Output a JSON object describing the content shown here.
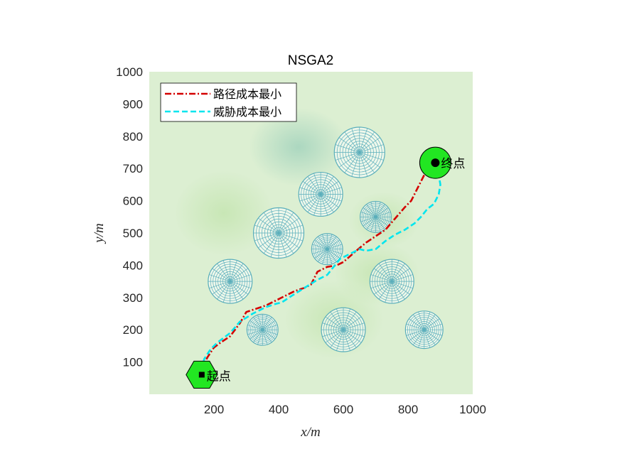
{
  "chart_data": {
    "type": "line",
    "title": "NSGA2",
    "xlabel": "x/m",
    "ylabel": "y/m",
    "xlim": [
      0,
      1000
    ],
    "ylim": [
      0,
      1000
    ],
    "xticks": [
      200,
      400,
      600,
      800,
      1000
    ],
    "yticks": [
      100,
      200,
      300,
      400,
      500,
      600,
      700,
      800,
      900,
      1000
    ],
    "grid": false,
    "legend_position": "top-left",
    "background": "terrain heat map (light green)",
    "series": [
      {
        "name": "路径成本最小",
        "color": "#d40000",
        "style": "dash-dot",
        "x": [
          160,
          180,
          200,
          220,
          250,
          280,
          300,
          330,
          360,
          390,
          420,
          450,
          480,
          500,
          520,
          550,
          580,
          600,
          640,
          670,
          700,
          730,
          760,
          790,
          810,
          830,
          850,
          860,
          870,
          880
        ],
        "y": [
          75,
          115,
          145,
          160,
          180,
          220,
          255,
          265,
          275,
          290,
          305,
          320,
          330,
          340,
          380,
          395,
          400,
          410,
          445,
          470,
          490,
          510,
          545,
          580,
          600,
          640,
          680,
          700,
          710,
          720
        ]
      },
      {
        "name": "威胁成本最小",
        "color": "#00e5ee",
        "style": "dashed",
        "x": [
          160,
          170,
          190,
          210,
          230,
          250,
          280,
          320,
          360,
          390,
          410,
          440,
          480,
          520,
          550,
          570,
          590,
          620,
          650,
          670,
          700,
          730,
          760,
          790,
          820,
          840,
          860,
          880,
          895,
          900,
          895,
          885,
          880
        ],
        "y": [
          75,
          110,
          140,
          160,
          175,
          190,
          225,
          250,
          270,
          280,
          285,
          305,
          330,
          355,
          370,
          395,
          420,
          435,
          450,
          445,
          450,
          475,
          495,
          510,
          530,
          550,
          575,
          590,
          620,
          650,
          680,
          710,
          720
        ]
      }
    ],
    "threats": [
      {
        "x": 650,
        "y": 750,
        "r": 78
      },
      {
        "x": 530,
        "y": 620,
        "r": 68
      },
      {
        "x": 700,
        "y": 550,
        "r": 48
      },
      {
        "x": 400,
        "y": 500,
        "r": 78
      },
      {
        "x": 550,
        "y": 450,
        "r": 48
      },
      {
        "x": 250,
        "y": 350,
        "r": 68
      },
      {
        "x": 750,
        "y": 350,
        "r": 68
      },
      {
        "x": 350,
        "y": 200,
        "r": 48
      },
      {
        "x": 600,
        "y": 200,
        "r": 68
      },
      {
        "x": 850,
        "y": 200,
        "r": 58
      }
    ],
    "start": {
      "label": "起点",
      "x": 160,
      "y": 65
    },
    "goal": {
      "label": "终点",
      "x": 880,
      "y": 720
    },
    "colors": {
      "threat_mesh": "#5aaebb",
      "marker_fill": "#22e622",
      "marker_center": "#000000",
      "plot_bg": "#dcefd2"
    }
  }
}
